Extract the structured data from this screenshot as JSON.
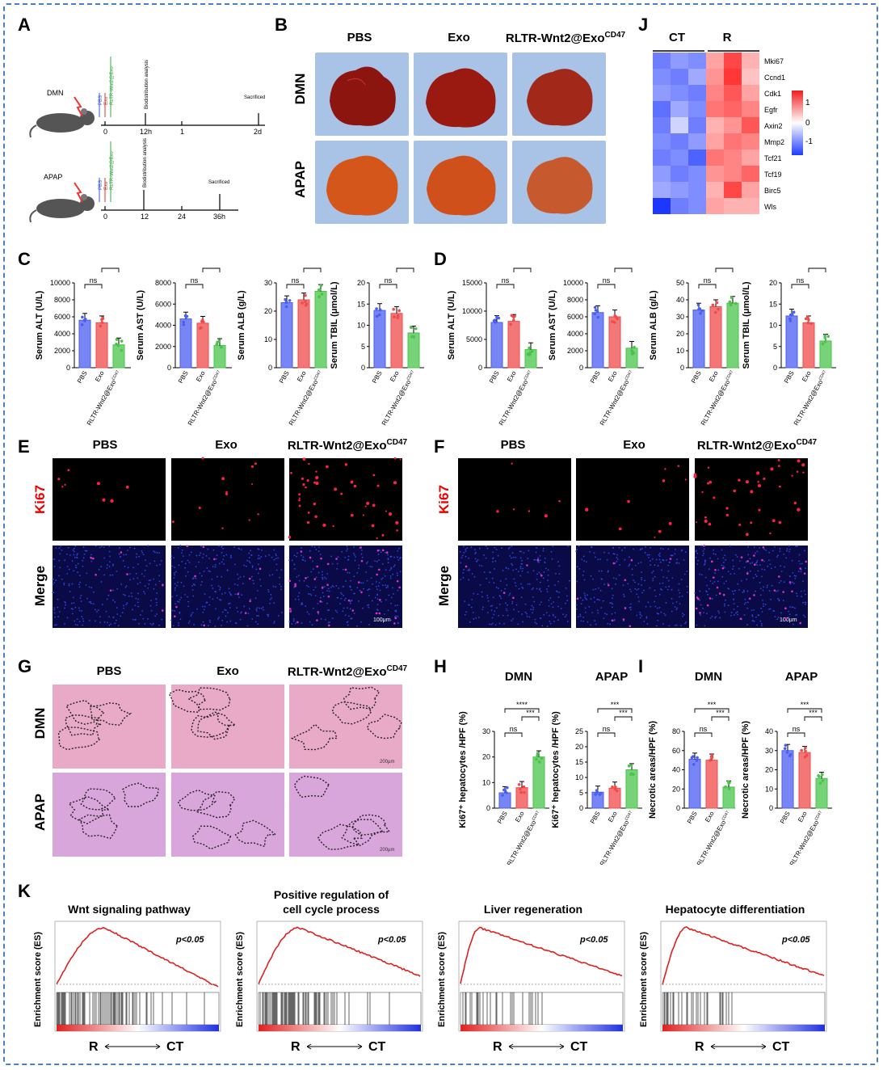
{
  "panels": {
    "A": "A",
    "B": "B",
    "C": "C",
    "D": "D",
    "E": "E",
    "F": "F",
    "G": "G",
    "H": "H",
    "I": "I",
    "J": "J",
    "K": "K"
  },
  "groups": {
    "pbs": "PBS",
    "exo": "Exo",
    "rltr": "RLTR-Wnt2@Exo",
    "rltr_sup": "CD47"
  },
  "models": {
    "dmn": "DMN",
    "apap": "APAP"
  },
  "schematic": {
    "dmn_label": "DMN",
    "apap_label": "APAP",
    "dmn_ticks": [
      "0",
      "12h",
      "1",
      "2d"
    ],
    "apap_ticks": [
      "0",
      "12",
      "24",
      "36h"
    ],
    "inj_pbs": "PBS",
    "inj_exo": "Exo",
    "inj_rltr": "RLTR-Wnt2@Exo",
    "biodist": "Biodistribution analysis",
    "sacrificed": "Sacrificed"
  },
  "heatmap": {
    "col_groups": [
      "CT",
      "R"
    ],
    "genes": [
      "Mki67",
      "Ccnd1",
      "Cdk1",
      "Egfr",
      "Axin2",
      "Mmp2",
      "Tcf21",
      "Tcf19",
      "Birc5",
      "Wls"
    ],
    "scale_ticks": [
      "1",
      "0",
      "-1"
    ],
    "values": [
      [
        -0.9,
        -0.7,
        -0.8,
        0.6,
        1.2,
        0.5
      ],
      [
        -0.8,
        -0.9,
        -0.6,
        0.7,
        1.3,
        0.4
      ],
      [
        -0.7,
        -0.8,
        -0.9,
        0.8,
        1.1,
        0.6
      ],
      [
        -1.0,
        -0.6,
        -0.8,
        0.9,
        1.0,
        0.8
      ],
      [
        -0.9,
        -0.3,
        -0.9,
        0.5,
        0.7,
        1.1
      ],
      [
        -0.8,
        -0.9,
        -0.7,
        0.6,
        0.9,
        0.8
      ],
      [
        -0.9,
        -0.8,
        -1.1,
        0.9,
        0.8,
        0.6
      ],
      [
        -0.7,
        -0.9,
        -0.8,
        0.7,
        0.8,
        1.0
      ],
      [
        -0.6,
        -0.7,
        -0.8,
        0.5,
        1.2,
        0.6
      ],
      [
        -1.4,
        -0.9,
        -0.8,
        0.6,
        0.5,
        0.5
      ]
    ]
  },
  "chart_data": [
    {
      "id": "C1",
      "type": "bar",
      "ylabel": "Serum ALT (U/L)",
      "ylim": [
        0,
        10000
      ],
      "yticks": [
        "0",
        "2000",
        "4000",
        "6000",
        "8000",
        "10000"
      ],
      "values": [
        5600,
        5300,
        2700
      ],
      "sig": [
        [
          "ns",
          0,
          1
        ],
        [
          "****",
          1,
          2
        ],
        [
          "****",
          0,
          2
        ]
      ]
    },
    {
      "id": "C2",
      "type": "bar",
      "ylabel": "Serum AST (U/L)",
      "ylim": [
        0,
        8000
      ],
      "yticks": [
        "0",
        "2000",
        "4000",
        "6000",
        "8000"
      ],
      "values": [
        4600,
        4200,
        2100
      ],
      "sig": [
        [
          "ns",
          0,
          1
        ],
        [
          "***",
          1,
          2
        ],
        [
          "***",
          0,
          2
        ]
      ]
    },
    {
      "id": "C3",
      "type": "bar",
      "ylabel": "Serum ALB (g/L)",
      "ylim": [
        0,
        30
      ],
      "yticks": [
        "0",
        "10",
        "20",
        "30"
      ],
      "values": [
        23,
        24,
        27
      ],
      "sig": [
        [
          "ns",
          0,
          1
        ],
        [
          "**",
          1,
          2
        ],
        [
          "***",
          0,
          2
        ]
      ]
    },
    {
      "id": "C4",
      "type": "bar",
      "ylabel": "Serum TBIL (μmol/L)",
      "ylim": [
        0,
        20
      ],
      "yticks": [
        "0",
        "5",
        "10",
        "15",
        "20"
      ],
      "values": [
        13.5,
        12.8,
        8.2
      ],
      "sig": [
        [
          "ns",
          0,
          1
        ],
        [
          "**",
          1,
          2
        ],
        [
          "***",
          0,
          2
        ]
      ]
    },
    {
      "id": "D1",
      "type": "bar",
      "ylabel": "Serum ALT (U/L)",
      "ylim": [
        0,
        15000
      ],
      "yticks": [
        "0",
        "5000",
        "10000",
        "15000"
      ],
      "values": [
        8000,
        8200,
        3200
      ],
      "sig": [
        [
          "ns",
          0,
          1
        ],
        [
          "***",
          1,
          2
        ],
        [
          "***",
          0,
          2
        ]
      ]
    },
    {
      "id": "D2",
      "type": "bar",
      "ylabel": "Serum AST (U/L)",
      "ylim": [
        0,
        10000
      ],
      "yticks": [
        "0",
        "2000",
        "4000",
        "6000",
        "8000",
        "10000"
      ],
      "values": [
        6500,
        6000,
        2300
      ],
      "sig": [
        [
          "ns",
          0,
          1
        ],
        [
          "***",
          1,
          2
        ],
        [
          "****",
          0,
          2
        ]
      ]
    },
    {
      "id": "D3",
      "type": "bar",
      "ylabel": "Serum ALB (g/L)",
      "ylim": [
        0,
        50
      ],
      "yticks": [
        "0",
        "10",
        "20",
        "30",
        "40",
        "50"
      ],
      "values": [
        34,
        36,
        38
      ],
      "sig": [
        [
          "ns",
          0,
          1
        ],
        [
          "ns",
          1,
          2
        ],
        [
          "**",
          0,
          2
        ]
      ]
    },
    {
      "id": "D4",
      "type": "bar",
      "ylabel": "Serum TBIL (μmol/L)",
      "ylim": [
        0,
        20
      ],
      "yticks": [
        "0",
        "5",
        "10",
        "15",
        "20"
      ],
      "values": [
        12.2,
        10.6,
        6.3
      ],
      "sig": [
        [
          "ns",
          0,
          1
        ],
        [
          "**",
          1,
          2
        ],
        [
          "***",
          0,
          2
        ]
      ]
    },
    {
      "id": "H1",
      "type": "bar",
      "title": "DMN",
      "ylabel": "Ki67⁺ hepatocytes /HPF (%)",
      "ylim": [
        0,
        30
      ],
      "yticks": [
        "0",
        "10",
        "20",
        "30"
      ],
      "values": [
        6,
        8,
        20
      ],
      "sig": [
        [
          "ns",
          0,
          1
        ],
        [
          "***",
          1,
          2
        ],
        [
          "****",
          0,
          2
        ]
      ]
    },
    {
      "id": "H2",
      "type": "bar",
      "title": "APAP",
      "ylabel": "Ki67⁺ hepatocytes /HPF (%)",
      "ylim": [
        0,
        25
      ],
      "yticks": [
        "0",
        "5",
        "10",
        "15",
        "20",
        "25"
      ],
      "values": [
        5.2,
        6.5,
        12.5
      ],
      "sig": [
        [
          "ns",
          0,
          1
        ],
        [
          "***",
          1,
          2
        ],
        [
          "***",
          0,
          2
        ]
      ]
    },
    {
      "id": "I1",
      "type": "bar",
      "title": "DMN",
      "ylabel": "Necrotic areas/HPF (%)",
      "ylim": [
        0,
        80
      ],
      "yticks": [
        "0",
        "20",
        "40",
        "60",
        "80"
      ],
      "values": [
        51,
        50,
        22
      ],
      "sig": [
        [
          "ns",
          0,
          1
        ],
        [
          "***",
          1,
          2
        ],
        [
          "***",
          0,
          2
        ]
      ]
    },
    {
      "id": "I2",
      "type": "bar",
      "title": "APAP",
      "ylabel": "Necrotic areas/HPF (%)",
      "ylim": [
        0,
        40
      ],
      "yticks": [
        "0",
        "10",
        "20",
        "30",
        "40"
      ],
      "values": [
        30,
        29,
        15.5
      ],
      "sig": [
        [
          "ns",
          0,
          1
        ],
        [
          "***",
          1,
          2
        ],
        [
          "***",
          0,
          2
        ]
      ]
    }
  ],
  "gsea": [
    {
      "title": "Wnt signaling pathway",
      "pval": "p<0.05",
      "es_max": 0.4
    },
    {
      "title": "Positive regulation of cell cycle process",
      "pval": "p<0.05",
      "es_max": 0.5
    },
    {
      "title": "Liver regeneration",
      "pval": "p<0.05",
      "es_max": 0.6
    },
    {
      "title": "Hepatocyte differentiation",
      "pval": "p<0.05",
      "es_max": 0.6
    }
  ],
  "gsea_ylabel": "Enrichment score (ES)",
  "gsea_axis": {
    "left": "R",
    "right": "CT"
  },
  "scalebar": {
    "ef": "100μm",
    "g": "200μm"
  },
  "colors": {
    "pbs": "#4a5ef0",
    "exo": "#f04a4a",
    "rltr": "#49c449",
    "border": "#4a7fc1"
  }
}
